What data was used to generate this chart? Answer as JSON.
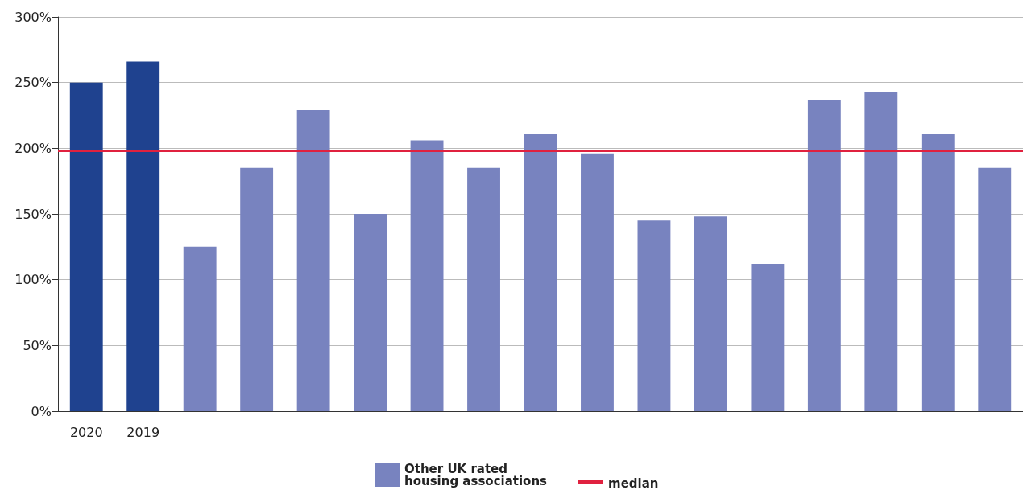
{
  "chart_data": {
    "type": "bar",
    "categories": [
      "2020",
      "2019",
      null,
      null,
      null,
      null,
      null,
      null,
      null,
      null,
      null,
      null,
      null,
      null,
      null,
      null,
      null
    ],
    "series": [
      {
        "color": "#1f428f",
        "values": [
          250,
          266,
          null,
          null,
          null,
          null,
          null,
          null,
          null,
          null,
          null,
          null,
          null,
          null,
          null,
          null,
          null
        ]
      },
      {
        "name": "Other UK rated\nhousing associations",
        "color": "#7883bf",
        "values": [
          null,
          null,
          125,
          185,
          229,
          150,
          206,
          185,
          211,
          196,
          145,
          148,
          112,
          237,
          243,
          211,
          185
        ]
      }
    ],
    "ylim": [
      0,
      300
    ],
    "yticks": [
      {
        "value": 0,
        "label": "0%"
      },
      {
        "value": 50,
        "label": "50%"
      },
      {
        "value": 100,
        "label": "100%"
      },
      {
        "value": 150,
        "label": "150%"
      },
      {
        "value": 200,
        "label": "200%"
      },
      {
        "value": 250,
        "label": "250%"
      },
      {
        "value": 300,
        "label": "300%"
      }
    ],
    "ref_lines": [
      {
        "axis": "y",
        "value": 198,
        "label": "median",
        "color": "#e0213f"
      }
    ],
    "grid": "y",
    "legend": "bottom"
  }
}
